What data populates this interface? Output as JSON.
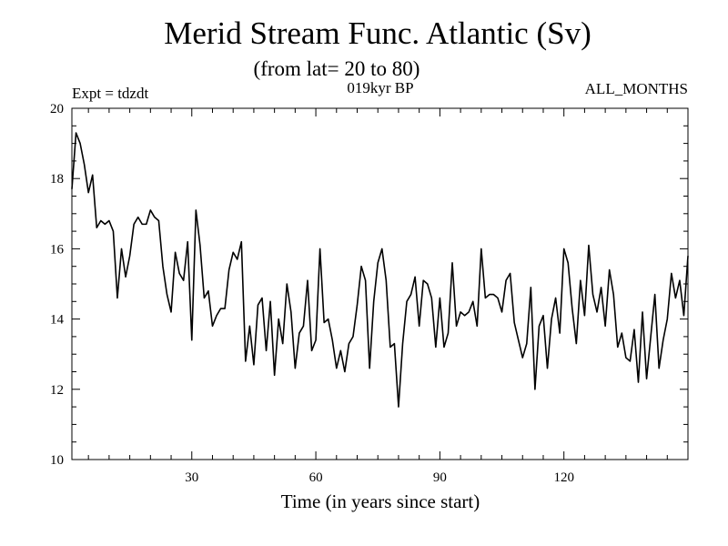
{
  "chart_data": {
    "type": "line",
    "title": "Merid Stream Func. Atlantic (Sv)",
    "subtitle": "(from lat= 20 to 80)",
    "left_label": "Expt = tdzdt",
    "center_label": "019kyr BP",
    "right_label": "ALL_MONTHS",
    "xlabel": "Time (in years since start)",
    "ylabel": "",
    "xlim": [
      1,
      150
    ],
    "ylim": [
      10,
      20
    ],
    "x_ticks": [
      30,
      60,
      90,
      120
    ],
    "y_ticks": [
      10,
      12,
      14,
      16,
      18,
      20
    ],
    "x_start": 1,
    "x_step": 1,
    "series": [
      {
        "name": "Merid Stream Func. Atlantic",
        "color": "#000000",
        "values": [
          17.7,
          19.3,
          19.0,
          18.4,
          17.6,
          18.1,
          16.6,
          16.8,
          16.7,
          16.8,
          16.5,
          14.6,
          16.0,
          15.2,
          15.8,
          16.7,
          16.9,
          16.7,
          16.7,
          17.1,
          16.9,
          16.8,
          15.5,
          14.7,
          14.2,
          15.9,
          15.3,
          15.1,
          16.2,
          13.4,
          17.1,
          16.1,
          14.6,
          14.8,
          13.8,
          14.1,
          14.3,
          14.3,
          15.4,
          15.9,
          15.7,
          16.2,
          12.8,
          13.8,
          12.7,
          14.4,
          14.6,
          13.1,
          14.5,
          12.4,
          14.0,
          13.3,
          15.0,
          14.2,
          12.6,
          13.6,
          13.8,
          15.1,
          13.1,
          13.4,
          16.0,
          13.9,
          14.0,
          13.4,
          12.6,
          13.1,
          12.5,
          13.3,
          13.5,
          14.4,
          15.5,
          15.1,
          12.6,
          14.5,
          15.6,
          16.0,
          15.1,
          13.2,
          13.3,
          11.5,
          13.3,
          14.5,
          14.7,
          15.2,
          13.8,
          15.1,
          15.0,
          14.6,
          13.2,
          14.6,
          13.2,
          13.6,
          15.6,
          13.8,
          14.2,
          14.1,
          14.2,
          14.5,
          13.8,
          16.0,
          14.6,
          14.7,
          14.7,
          14.6,
          14.2,
          15.1,
          15.3,
          13.9,
          13.4,
          12.9,
          13.3,
          14.9,
          12.0,
          13.8,
          14.1,
          12.6,
          14.0,
          14.6,
          13.6,
          16.0,
          15.6,
          14.3,
          13.3,
          15.1,
          14.1,
          16.1,
          14.7,
          14.2,
          14.9,
          13.8,
          15.4,
          14.7,
          13.2,
          13.6,
          12.9,
          12.8,
          13.7,
          12.2,
          14.2,
          12.3,
          13.5,
          14.7,
          12.6,
          13.4,
          14.0,
          15.3,
          14.6,
          15.1,
          14.1,
          15.8
        ]
      }
    ]
  }
}
